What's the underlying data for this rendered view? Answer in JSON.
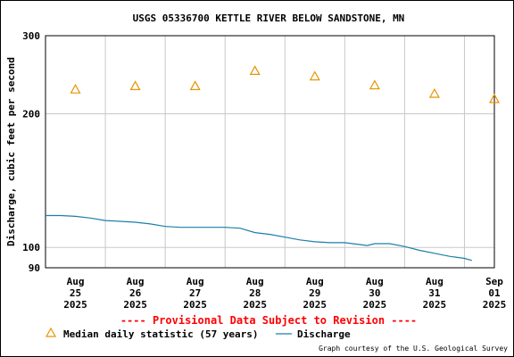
{
  "chart_data": {
    "type": "line",
    "title": "USGS 05336700 KETTLE RIVER BELOW SANDSTONE, MN",
    "ylabel": "Discharge, cubic feet per second",
    "xlabel": "",
    "y_scale": "log",
    "ylim": [
      90,
      300
    ],
    "y_ticks": [
      90,
      100,
      200,
      300
    ],
    "x_range": [
      "2025-08-25 00:00",
      "2025-09-01 12:00"
    ],
    "x_tick_labels": [
      {
        "month": "Aug",
        "day": "25",
        "year": "2025"
      },
      {
        "month": "Aug",
        "day": "26",
        "year": "2025"
      },
      {
        "month": "Aug",
        "day": "27",
        "year": "2025"
      },
      {
        "month": "Aug",
        "day": "28",
        "year": "2025"
      },
      {
        "month": "Aug",
        "day": "29",
        "year": "2025"
      },
      {
        "month": "Aug",
        "day": "30",
        "year": "2025"
      },
      {
        "month": "Aug",
        "day": "31",
        "year": "2025"
      },
      {
        "month": "Sep",
        "day": "01",
        "year": "2025"
      }
    ],
    "grid": true,
    "series": [
      {
        "name": "Median daily statistic (57 years)",
        "kind": "marker-triangle",
        "color": "#e69500",
        "x": [
          "2025-08-25 12:00",
          "2025-08-26 12:00",
          "2025-08-27 12:00",
          "2025-08-28 12:00",
          "2025-08-29 12:00",
          "2025-08-30 12:00",
          "2025-08-31 12:00",
          "2025-09-01 12:00"
        ],
        "y": [
          227,
          231,
          231,
          250,
          243,
          232,
          222,
          216
        ]
      },
      {
        "name": "Discharge",
        "kind": "line",
        "color": "#1a7fa8",
        "x": [
          "2025-08-25 00:00",
          "2025-08-25 06:00",
          "2025-08-25 12:00",
          "2025-08-25 18:00",
          "2025-08-26 00:00",
          "2025-08-26 06:00",
          "2025-08-26 12:00",
          "2025-08-26 18:00",
          "2025-08-27 00:00",
          "2025-08-27 06:00",
          "2025-08-27 12:00",
          "2025-08-27 18:00",
          "2025-08-28 00:00",
          "2025-08-28 06:00",
          "2025-08-28 12:00",
          "2025-08-28 18:00",
          "2025-08-29 00:00",
          "2025-08-29 06:00",
          "2025-08-29 12:00",
          "2025-08-29 18:00",
          "2025-08-30 00:00",
          "2025-08-30 06:00",
          "2025-08-30 09:00",
          "2025-08-30 12:00",
          "2025-08-30 18:00",
          "2025-08-31 00:00",
          "2025-08-31 06:00",
          "2025-08-31 12:00",
          "2025-08-31 18:00",
          "2025-09-01 00:00",
          "2025-09-01 03:00"
        ],
        "y": [
          118,
          118,
          117.5,
          116.5,
          115,
          114.5,
          114,
          113,
          111.5,
          111,
          111,
          111,
          111,
          110.5,
          108,
          107,
          105.5,
          104,
          103,
          102.5,
          102.5,
          101.5,
          101,
          102,
          102,
          100.5,
          98.5,
          97,
          95.5,
          94.5,
          93.5
        ]
      }
    ],
    "legend_position": "bottom",
    "annotations": [
      "---- Provisional Data Subject to Revision ----"
    ],
    "credit": "Graph courtesy of the U.S. Geological Survey"
  },
  "colors": {
    "annotation": "#ff0000",
    "grid": "#c8c8c8",
    "median": "#e69500",
    "discharge": "#1a7fa8"
  }
}
